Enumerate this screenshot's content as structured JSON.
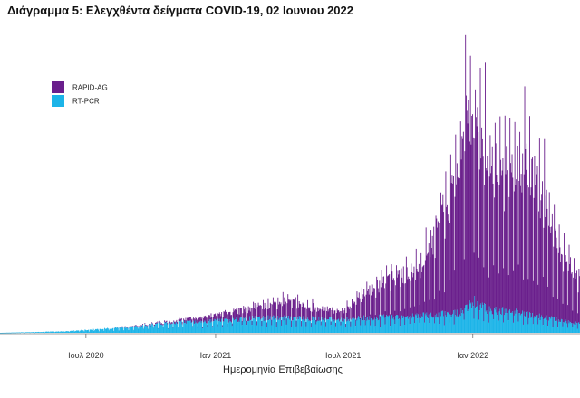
{
  "chart_data": {
    "type": "bar",
    "stacked": true,
    "title": "Διάγραμμα 5: Ελεγχθέντα δείγματα COVID-19, 02 Ιουνιου 2022",
    "xlabel": "Ημερομηνία Επιβεβαίωσης",
    "ylabel": "",
    "x_ticks": [
      {
        "date": "2020-07-01",
        "label": "Ιουλ 2020"
      },
      {
        "date": "2021-01-01",
        "label": "Ιαν 2021"
      },
      {
        "date": "2021-07-01",
        "label": "Ιουλ 2021"
      },
      {
        "date": "2022-01-01",
        "label": "Ιαν 2022"
      }
    ],
    "x_range": [
      "2020-03-01",
      "2022-06-02"
    ],
    "ylim": [
      0,
      1
    ],
    "grid": false,
    "legend_position": "top-left",
    "series": [
      {
        "name": "RAPID-AG",
        "color": "#6a1f8c"
      },
      {
        "name": "RT-PCR",
        "color": "#1cb4e8"
      }
    ],
    "rt_pcr_profile": [
      [
        "2020-03-01",
        0.0
      ],
      [
        "2020-06-01",
        0.005
      ],
      [
        "2020-07-01",
        0.01
      ],
      [
        "2020-09-01",
        0.02
      ],
      [
        "2020-11-01",
        0.035
      ],
      [
        "2021-01-01",
        0.04
      ],
      [
        "2021-03-01",
        0.05
      ],
      [
        "2021-05-01",
        0.05
      ],
      [
        "2021-07-01",
        0.045
      ],
      [
        "2021-08-01",
        0.05
      ],
      [
        "2021-11-01",
        0.06
      ],
      [
        "2021-12-15",
        0.07
      ],
      [
        "2022-01-01",
        0.11
      ],
      [
        "2022-01-20",
        0.08
      ],
      [
        "2022-03-01",
        0.07
      ],
      [
        "2022-04-15",
        0.05
      ],
      [
        "2022-06-02",
        0.03
      ]
    ],
    "rapid_ag_profile": [
      [
        "2020-03-01",
        0.0
      ],
      [
        "2020-08-01",
        0.0
      ],
      [
        "2020-11-01",
        0.005
      ],
      [
        "2021-01-01",
        0.02
      ],
      [
        "2021-03-01",
        0.04
      ],
      [
        "2021-04-15",
        0.06
      ],
      [
        "2021-05-15",
        0.04
      ],
      [
        "2021-07-01",
        0.03
      ],
      [
        "2021-08-01",
        0.09
      ],
      [
        "2021-09-01",
        0.13
      ],
      [
        "2021-10-15",
        0.15
      ],
      [
        "2021-11-10",
        0.28
      ],
      [
        "2021-12-01",
        0.42
      ],
      [
        "2021-12-20",
        0.62
      ],
      [
        "2022-01-05",
        0.65
      ],
      [
        "2022-01-25",
        0.5
      ],
      [
        "2022-02-20",
        0.48
      ],
      [
        "2022-03-15",
        0.52
      ],
      [
        "2022-04-10",
        0.42
      ],
      [
        "2022-05-01",
        0.25
      ],
      [
        "2022-06-02",
        0.14
      ]
    ]
  }
}
